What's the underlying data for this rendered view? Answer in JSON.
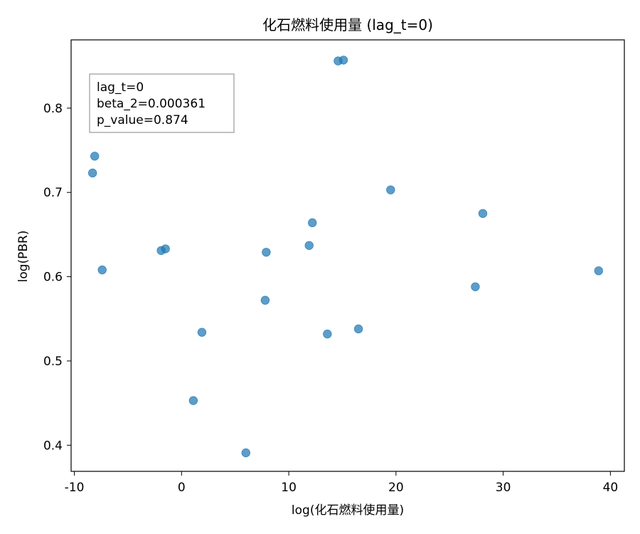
{
  "chart_data": {
    "type": "scatter",
    "title": "化石燃料使用量 (lag_t=0)",
    "xlabel": "log(化石燃料使用量)",
    "ylabel": "log(PBR)",
    "xlim": [
      -10.3,
      41.3
    ],
    "ylim": [
      0.369,
      0.881
    ],
    "xticks": [
      -10,
      0,
      10,
      20,
      30,
      40
    ],
    "xtick_labels": [
      "-10",
      "0",
      "10",
      "20",
      "30",
      "40"
    ],
    "yticks": [
      0.4,
      0.5,
      0.6,
      0.7,
      0.8
    ],
    "ytick_labels": [
      "0.4",
      "0.5",
      "0.6",
      "0.7",
      "0.8"
    ],
    "grid": false,
    "marker_color": "#1f77b4",
    "annotation": {
      "lines": [
        "lag_t=0",
        "beta_2=0.000361",
        "p_value=0.874"
      ],
      "placement": "top-left"
    },
    "points": [
      {
        "x": -8.1,
        "y": 0.743
      },
      {
        "x": -8.3,
        "y": 0.723
      },
      {
        "x": -7.4,
        "y": 0.608
      },
      {
        "x": -1.9,
        "y": 0.631
      },
      {
        "x": -1.5,
        "y": 0.633
      },
      {
        "x": 1.1,
        "y": 0.453
      },
      {
        "x": 1.9,
        "y": 0.534
      },
      {
        "x": 6.0,
        "y": 0.391
      },
      {
        "x": 7.8,
        "y": 0.572
      },
      {
        "x": 7.9,
        "y": 0.629
      },
      {
        "x": 11.9,
        "y": 0.637
      },
      {
        "x": 12.2,
        "y": 0.664
      },
      {
        "x": 13.6,
        "y": 0.532
      },
      {
        "x": 14.6,
        "y": 0.856
      },
      {
        "x": 15.1,
        "y": 0.857
      },
      {
        "x": 16.5,
        "y": 0.538
      },
      {
        "x": 19.5,
        "y": 0.703
      },
      {
        "x": 27.4,
        "y": 0.588
      },
      {
        "x": 28.1,
        "y": 0.675
      },
      {
        "x": 38.9,
        "y": 0.607
      }
    ]
  }
}
